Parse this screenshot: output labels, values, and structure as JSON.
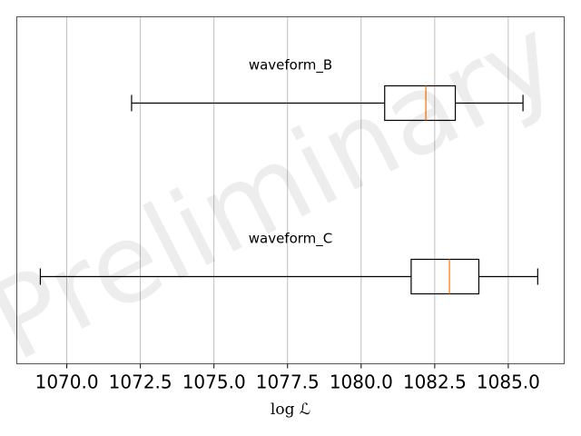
{
  "chart_data": {
    "type": "boxplot",
    "orientation": "horizontal",
    "xlabel": "log ℒ",
    "xlim": [
      1068.3,
      1086.9
    ],
    "xticks": [
      1070.0,
      1072.5,
      1075.0,
      1077.5,
      1080.0,
      1082.5,
      1085.0
    ],
    "xtick_labels": [
      "1070.0",
      "1072.5",
      "1075.0",
      "1077.5",
      "1080.0",
      "1082.5",
      "1085.0"
    ],
    "grid": "vertical",
    "series": [
      {
        "name": "waveform_B",
        "whisker_low": 1072.2,
        "q1": 1080.8,
        "median": 1082.2,
        "q3": 1083.2,
        "whisker_high": 1085.5
      },
      {
        "name": "waveform_C",
        "whisker_low": 1069.1,
        "q1": 1081.7,
        "median": 1083.0,
        "q3": 1084.0,
        "whisker_high": 1086.0
      }
    ],
    "watermark": "Preliminary",
    "colors": {
      "box": "#000000",
      "median": "#ff7f0e",
      "grid": "#b0b0b0",
      "frame": "#555555"
    }
  }
}
